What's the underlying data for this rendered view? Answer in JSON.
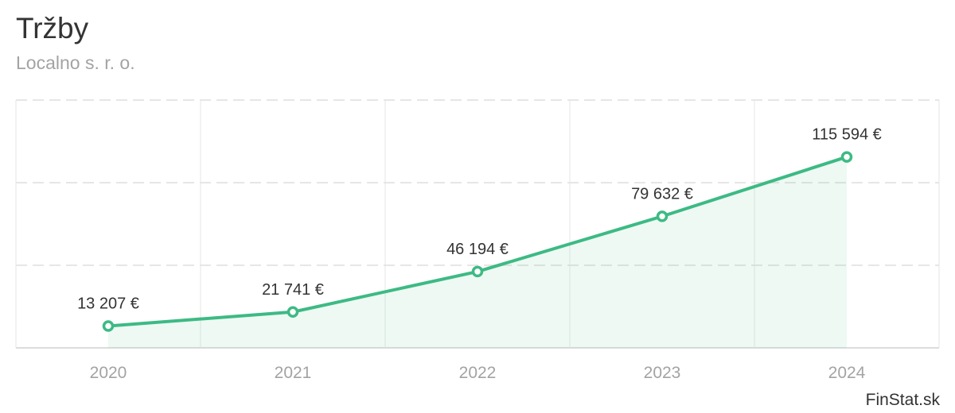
{
  "chart_data": {
    "type": "area",
    "title": "Tržby",
    "subtitle": "Localno s. r. o.",
    "categories": [
      "2020",
      "2021",
      "2022",
      "2023",
      "2024"
    ],
    "series": [
      {
        "values": [
          13207,
          21741,
          46194,
          79632,
          115594
        ],
        "data_labels": [
          "13 207 €",
          "21 741 €",
          "46 194 €",
          "79 632 €",
          "115 594 €"
        ]
      }
    ],
    "ylim": [
      0,
      150000
    ],
    "grid": true,
    "legend": "none",
    "credit": "FinStat.sk",
    "colors": {
      "line": "#3dba84",
      "area": "#3dba84",
      "marker_fill": "#ffffff",
      "grid": "#e6e6e6",
      "axis_label": "#a3a3a3",
      "data_label": "#333333"
    }
  }
}
